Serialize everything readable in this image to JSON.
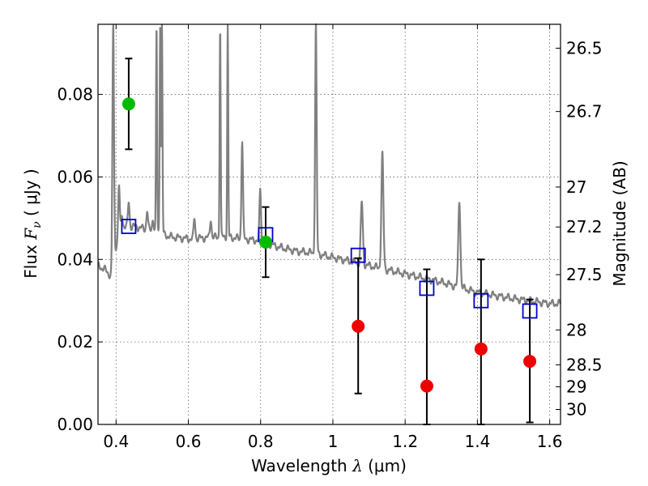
{
  "chart_data": {
    "type": "scatter",
    "xlabel": {
      "prefix": "Wavelength ",
      "symbol": "λ",
      "units": " (μm)"
    },
    "ylabel": {
      "prefix": "Flux ",
      "symbol": "F",
      "sub": "ν",
      "units": " ( μJy )"
    },
    "ylabel_right": "Magnitude (AB)",
    "xlim": [
      0.35,
      1.63
    ],
    "ylim": [
      0.0,
      0.097
    ],
    "grid": true,
    "xticks": [
      {
        "value": 0.4,
        "label": "0.4"
      },
      {
        "value": 0.6,
        "label": "0.6"
      },
      {
        "value": 0.8,
        "label": "0.8"
      },
      {
        "value": 1.0,
        "label": "1"
      },
      {
        "value": 1.2,
        "label": "1.2"
      },
      {
        "value": 1.4,
        "label": "1.4"
      },
      {
        "value": 1.6,
        "label": "1.6"
      }
    ],
    "yticks": [
      {
        "value": 0.0,
        "label": "0.00"
      },
      {
        "value": 0.02,
        "label": "0.02"
      },
      {
        "value": 0.04,
        "label": "0.04"
      },
      {
        "value": 0.06,
        "label": "0.06"
      },
      {
        "value": 0.08,
        "label": "0.08"
      }
    ],
    "yticks_right": [
      {
        "label": "26.5",
        "value": 26.5
      },
      {
        "label": "26.7",
        "value": 26.7
      },
      {
        "label": "27",
        "value": 27
      },
      {
        "label": "27.2",
        "value": 27.2
      },
      {
        "label": "27.5",
        "value": 27.5
      },
      {
        "label": "28",
        "value": 28
      },
      {
        "label": "28.5",
        "value": 28.5
      },
      {
        "label": "29",
        "value": 29
      },
      {
        "label": "30",
        "value": 30
      }
    ],
    "model_spectrum": {
      "color": "#808080",
      "continuum": [
        [
          0.35,
          0.0385
        ],
        [
          0.37,
          0.0375
        ],
        [
          0.385,
          0.036
        ],
        [
          0.39,
          0.0365
        ],
        [
          0.395,
          0.042
        ],
        [
          0.42,
          0.048
        ],
        [
          0.45,
          0.048
        ],
        [
          0.5,
          0.047
        ],
        [
          0.55,
          0.0455
        ],
        [
          0.6,
          0.045
        ],
        [
          0.7,
          0.0455
        ],
        [
          0.8,
          0.0445
        ],
        [
          0.85,
          0.043
        ],
        [
          0.9,
          0.042
        ],
        [
          0.95,
          0.0415
        ],
        [
          1.0,
          0.0405
        ],
        [
          1.05,
          0.0395
        ],
        [
          1.1,
          0.0385
        ],
        [
          1.2,
          0.0365
        ],
        [
          1.3,
          0.0345
        ],
        [
          1.4,
          0.032
        ],
        [
          1.5,
          0.0305
        ],
        [
          1.6,
          0.0293
        ],
        [
          1.63,
          0.0293
        ]
      ],
      "lines": [
        {
          "x": 0.392,
          "peak": 0.097,
          "width": 0.003
        },
        {
          "x": 0.408,
          "peak": 0.058,
          "width": 0.003
        },
        {
          "x": 0.416,
          "peak": 0.051,
          "width": 0.003
        },
        {
          "x": 0.435,
          "peak": 0.054,
          "width": 0.003
        },
        {
          "x": 0.486,
          "peak": 0.052,
          "width": 0.003
        },
        {
          "x": 0.502,
          "peak": 0.05,
          "width": 0.003
        },
        {
          "x": 0.512,
          "peak": 0.097,
          "width": 0.002
        },
        {
          "x": 0.522,
          "peak": 0.097,
          "width": 0.002
        },
        {
          "x": 0.527,
          "peak": 0.097,
          "width": 0.002
        },
        {
          "x": 0.617,
          "peak": 0.05,
          "width": 0.003
        },
        {
          "x": 0.662,
          "peak": 0.05,
          "width": 0.003
        },
        {
          "x": 0.688,
          "peak": 0.097,
          "width": 0.002
        },
        {
          "x": 0.709,
          "peak": 0.097,
          "width": 0.002
        },
        {
          "x": 0.749,
          "peak": 0.069,
          "width": 0.003
        },
        {
          "x": 0.799,
          "peak": 0.057,
          "width": 0.003
        },
        {
          "x": 0.953,
          "peak": 0.097,
          "width": 0.003
        },
        {
          "x": 1.08,
          "peak": 0.054,
          "width": 0.004
        },
        {
          "x": 1.137,
          "peak": 0.0655,
          "width": 0.004
        },
        {
          "x": 1.35,
          "peak": 0.0545,
          "width": 0.004
        }
      ]
    },
    "series": [
      {
        "marker": "square-open",
        "color": "#0000cc",
        "points": [
          {
            "x": 0.435,
            "y": 0.048
          },
          {
            "x": 0.814,
            "y": 0.046
          },
          {
            "x": 1.07,
            "y": 0.041
          },
          {
            "x": 1.26,
            "y": 0.033
          },
          {
            "x": 1.41,
            "y": 0.03
          },
          {
            "x": 1.545,
            "y": 0.0275
          }
        ]
      },
      {
        "marker": "circle",
        "color": "#00bb00",
        "points": [
          {
            "x": 0.435,
            "y": 0.0777,
            "err": 0.011
          },
          {
            "x": 0.814,
            "y": 0.0442,
            "err": 0.0085
          }
        ]
      },
      {
        "marker": "circle",
        "color": "#ee0000",
        "points": [
          {
            "x": 1.07,
            "y": 0.0238,
            "err_low": 0.0163,
            "err_high": 0.0165
          },
          {
            "x": 1.26,
            "y": 0.0093,
            "err_low": 0.0093,
            "err_high": 0.0283
          },
          {
            "x": 1.41,
            "y": 0.0183,
            "err_low": 0.0183,
            "err_high": 0.0217
          },
          {
            "x": 1.545,
            "y": 0.0153,
            "err_low": 0.0148,
            "err_high": 0.015
          }
        ]
      }
    ]
  }
}
